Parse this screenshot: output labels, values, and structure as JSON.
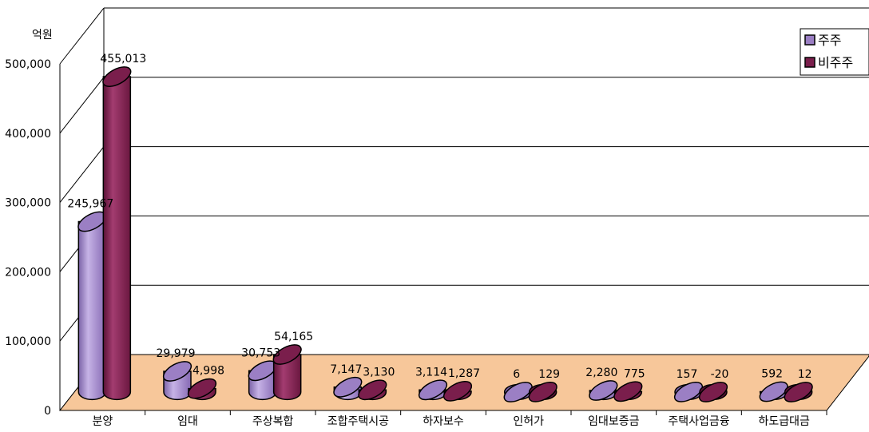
{
  "chart_data": {
    "type": "bar",
    "ylabel": "억원",
    "ylim": [
      0,
      500000
    ],
    "yticks": [
      0,
      100000,
      200000,
      300000,
      400000,
      500000
    ],
    "ytick_labels": [
      "0",
      "100,000",
      "200,000",
      "300,000",
      "400,000",
      "500,000"
    ],
    "grid": true,
    "legend_position": "top-right",
    "categories": [
      "분양",
      "임대",
      "주상복합",
      "조합주택시공",
      "하자보수",
      "인허가",
      "임대보증금",
      "주택사업금융",
      "하도급대금"
    ],
    "series": [
      {
        "name": "주주",
        "color": "#9B7FC4",
        "values": [
          245967,
          29979,
          30753,
          7147,
          3114,
          6,
          2280,
          157,
          592
        ],
        "labels": [
          "245,967",
          "29,979",
          "30,753",
          "7,147",
          "3,114",
          "6",
          "2,280",
          "157",
          "592"
        ]
      },
      {
        "name": "비주주",
        "color": "#7A1E4C",
        "values": [
          455013,
          4998,
          54165,
          3130,
          1287,
          129,
          775,
          -20,
          12
        ],
        "labels": [
          "455,013",
          "4,998",
          "54,165",
          "3,130",
          "1,287",
          "129",
          "775",
          "-20",
          "12"
        ]
      }
    ]
  }
}
